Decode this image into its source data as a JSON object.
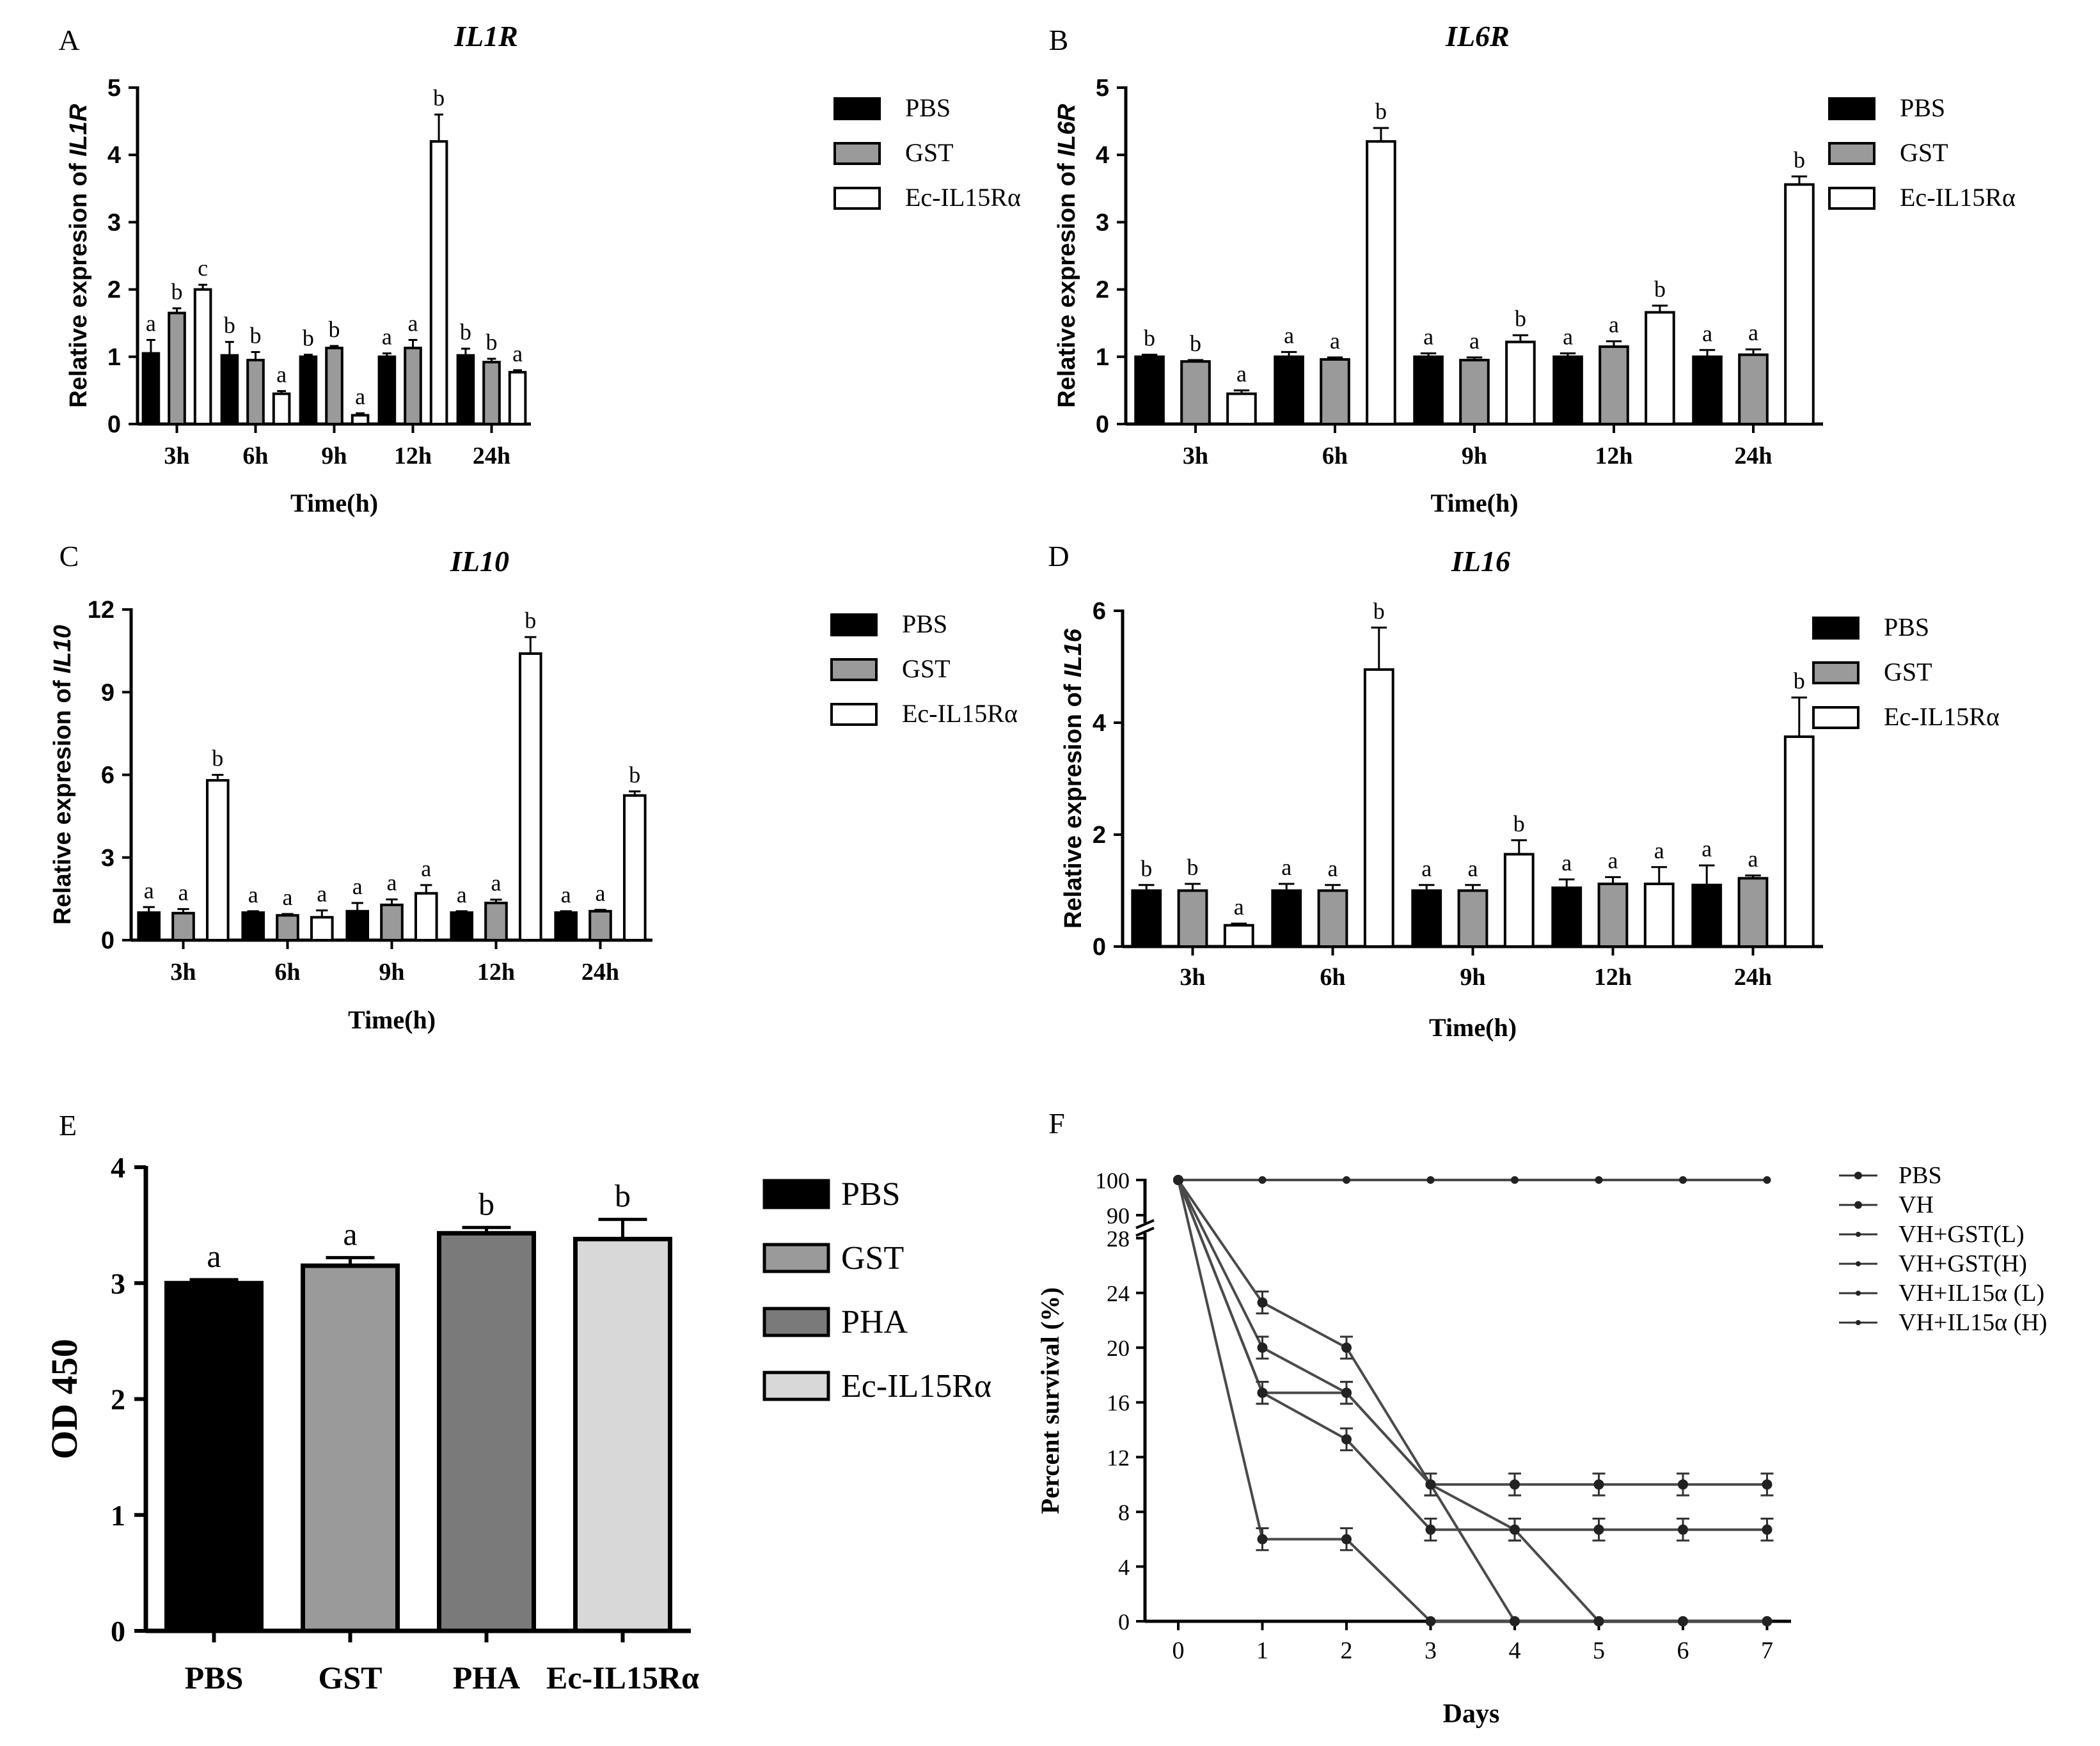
{
  "colors": {
    "pbs": "#000000",
    "gst": "#9a9a9a",
    "pha": "#7a7a7a",
    "ec": "#ffffff",
    "ec_e": "#d8d8d8",
    "line": "#4a4a4a"
  },
  "chart_data": [
    {
      "panel": "A",
      "type": "bar",
      "title": "IL1R",
      "xlabel": "Time(h)",
      "ylabel_prefix": "Relative expresion of ",
      "ylabel_gene": "IL1R",
      "ylim": [
        0,
        5
      ],
      "yticks": [
        0,
        1,
        2,
        3,
        4,
        5
      ],
      "categories": [
        "3h",
        "6h",
        "9h",
        "12h",
        "24h"
      ],
      "legend": [
        "PBS",
        "GST",
        "Ec-IL15Rα"
      ],
      "series": [
        {
          "name": "PBS",
          "values": [
            1.05,
            1.02,
            1.0,
            1.0,
            1.02
          ],
          "errors": [
            0.2,
            0.2,
            0.03,
            0.05,
            0.1
          ],
          "letters": [
            "a",
            "b",
            "b",
            "a",
            "b"
          ]
        },
        {
          "name": "GST",
          "values": [
            1.65,
            0.95,
            1.13,
            1.13,
            0.92
          ],
          "errors": [
            0.07,
            0.12,
            0.03,
            0.12,
            0.05
          ],
          "letters": [
            "b",
            "b",
            "b",
            "a",
            "b"
          ]
        },
        {
          "name": "Ec-IL15Rα",
          "values": [
            2.0,
            0.45,
            0.13,
            4.2,
            0.77
          ],
          "errors": [
            0.07,
            0.04,
            0.03,
            0.4,
            0.03
          ],
          "letters": [
            "c",
            "a",
            "a",
            "b",
            "a"
          ]
        }
      ]
    },
    {
      "panel": "B",
      "type": "bar",
      "title": "IL6R",
      "xlabel": "Time(h)",
      "ylabel_prefix": "Relative expresion of ",
      "ylabel_gene": "IL6R",
      "ylim": [
        0,
        5
      ],
      "yticks": [
        0,
        1,
        2,
        3,
        4,
        5
      ],
      "categories": [
        "3h",
        "6h",
        "9h",
        "12h",
        "24h"
      ],
      "legend": [
        "PBS",
        "GST",
        "Ec-IL15Rα"
      ],
      "series": [
        {
          "name": "PBS",
          "values": [
            1.0,
            1.0,
            1.0,
            1.0,
            1.0
          ],
          "errors": [
            0.03,
            0.07,
            0.05,
            0.05,
            0.1
          ],
          "letters": [
            "b",
            "a",
            "a",
            "a",
            "a"
          ]
        },
        {
          "name": "GST",
          "values": [
            0.93,
            0.96,
            0.95,
            1.15,
            1.03
          ],
          "errors": [
            0.02,
            0.03,
            0.04,
            0.08,
            0.08
          ],
          "letters": [
            "b",
            "a",
            "a",
            "a",
            "a"
          ]
        },
        {
          "name": "Ec-IL15Rα",
          "values": [
            0.45,
            4.2,
            1.22,
            1.66,
            3.56
          ],
          "errors": [
            0.05,
            0.2,
            0.1,
            0.1,
            0.12
          ],
          "letters": [
            "a",
            "b",
            "b",
            "b",
            "b"
          ]
        }
      ]
    },
    {
      "panel": "C",
      "type": "bar",
      "title": "IL10",
      "xlabel": "Time(h)",
      "ylabel_prefix": "Relative expresion of ",
      "ylabel_gene": "IL10",
      "ylim": [
        0,
        12
      ],
      "yticks": [
        0,
        3,
        6,
        9,
        12
      ],
      "categories": [
        "3h",
        "6h",
        "9h",
        "12h",
        "24h"
      ],
      "legend": [
        "PBS",
        "GST",
        "Ec-IL15Rα"
      ],
      "series": [
        {
          "name": "PBS",
          "values": [
            1.0,
            1.0,
            1.05,
            1.0,
            1.0
          ],
          "errors": [
            0.2,
            0.05,
            0.3,
            0.05,
            0.05
          ],
          "letters": [
            "a",
            "a",
            "a",
            "a",
            "a"
          ]
        },
        {
          "name": "GST",
          "values": [
            0.98,
            0.9,
            1.28,
            1.35,
            1.05
          ],
          "errors": [
            0.15,
            0.05,
            0.2,
            0.12,
            0.05
          ],
          "letters": [
            "a",
            "a",
            "a",
            "a",
            "a"
          ]
        },
        {
          "name": "Ec-IL15Rα",
          "values": [
            5.8,
            0.83,
            1.7,
            10.4,
            5.25
          ],
          "errors": [
            0.2,
            0.25,
            0.3,
            0.6,
            0.15
          ],
          "letters": [
            "b",
            "a",
            "a",
            "b",
            "b"
          ]
        }
      ]
    },
    {
      "panel": "D",
      "type": "bar",
      "title": "IL16",
      "xlabel": "Time(h)",
      "ylabel_prefix": "Relative expresion of ",
      "ylabel_gene": "IL16",
      "ylim": [
        0,
        6
      ],
      "yticks": [
        0,
        2,
        4,
        6
      ],
      "categories": [
        "3h",
        "6h",
        "9h",
        "12h",
        "24h"
      ],
      "legend": [
        "PBS",
        "GST",
        "Ec-IL15Rα"
      ],
      "series": [
        {
          "name": "PBS",
          "values": [
            1.0,
            1.0,
            1.0,
            1.05,
            1.1
          ],
          "errors": [
            0.1,
            0.12,
            0.1,
            0.15,
            0.35
          ],
          "letters": [
            "b",
            "a",
            "a",
            "a",
            "a"
          ]
        },
        {
          "name": "GST",
          "values": [
            1.0,
            1.0,
            1.0,
            1.12,
            1.22
          ],
          "errors": [
            0.12,
            0.1,
            0.1,
            0.12,
            0.05
          ],
          "letters": [
            "b",
            "a",
            "a",
            "a",
            "a"
          ]
        },
        {
          "name": "Ec-IL15Rα",
          "values": [
            0.38,
            4.95,
            1.65,
            1.12,
            3.75
          ],
          "errors": [
            0.03,
            0.75,
            0.25,
            0.3,
            0.7
          ],
          "letters": [
            "a",
            "b",
            "b",
            "a",
            "b"
          ]
        }
      ]
    },
    {
      "panel": "E",
      "type": "bar",
      "title": "",
      "xlabel": "",
      "ylabel": "OD 450",
      "ylim": [
        0,
        4
      ],
      "yticks": [
        0,
        1,
        2,
        3,
        4
      ],
      "categories": [
        "PBS",
        "GST",
        "PHA",
        "Ec-IL15Rα"
      ],
      "values": [
        3.0,
        3.15,
        3.43,
        3.38
      ],
      "errors": [
        0.03,
        0.07,
        0.05,
        0.17
      ],
      "letters": [
        "a",
        "a",
        "b",
        "b"
      ],
      "legend": [
        "PBS",
        "GST",
        "PHA",
        "Ec-IL15Rα"
      ]
    },
    {
      "panel": "F",
      "type": "line",
      "title": "",
      "xlabel": "Days",
      "ylabel": "Percent survival (%)",
      "x": [
        0,
        1,
        2,
        3,
        4,
        5,
        6,
        7
      ],
      "y_lower_ticks": [
        0,
        4,
        8,
        12,
        16,
        20,
        24,
        28
      ],
      "y_upper_ticks": [
        90,
        100
      ],
      "axis_break": [
        28,
        90
      ],
      "series": [
        {
          "name": "PBS",
          "values": [
            100,
            100,
            100,
            100,
            100,
            100,
            100,
            100
          ],
          "errors": [
            0,
            0,
            0,
            0,
            0,
            0,
            0,
            0
          ]
        },
        {
          "name": "VH",
          "values": [
            100,
            6,
            6,
            0,
            0,
            0,
            0,
            0
          ],
          "errors": [
            0,
            0.8,
            0.8,
            0,
            0,
            0,
            0,
            0
          ]
        },
        {
          "name": "VH+GST(L)",
          "values": [
            100,
            16.7,
            16.7,
            10,
            0,
            0,
            0,
            0
          ],
          "errors": [
            0,
            0.8,
            0.8,
            0.8,
            0,
            0,
            0,
            0
          ]
        },
        {
          "name": "VH+GST(H)",
          "values": [
            100,
            20,
            16.7,
            10,
            6.7,
            0,
            0,
            0
          ],
          "errors": [
            0,
            0.8,
            0.8,
            0.8,
            0.8,
            0,
            0,
            0
          ]
        },
        {
          "name": "VH+IL15α (L)",
          "values": [
            100,
            23.3,
            20,
            10,
            10,
            10,
            10,
            10
          ],
          "errors": [
            0,
            0.8,
            0.8,
            0.8,
            0.8,
            0.8,
            0.8,
            0.8
          ]
        },
        {
          "name": "VH+IL15α (H)",
          "values": [
            100,
            16.7,
            13.3,
            6.7,
            6.7,
            6.7,
            6.7,
            6.7
          ],
          "errors": [
            0,
            0.8,
            0.8,
            0.8,
            0.8,
            0.8,
            0.8,
            0.8
          ]
        }
      ]
    }
  ]
}
